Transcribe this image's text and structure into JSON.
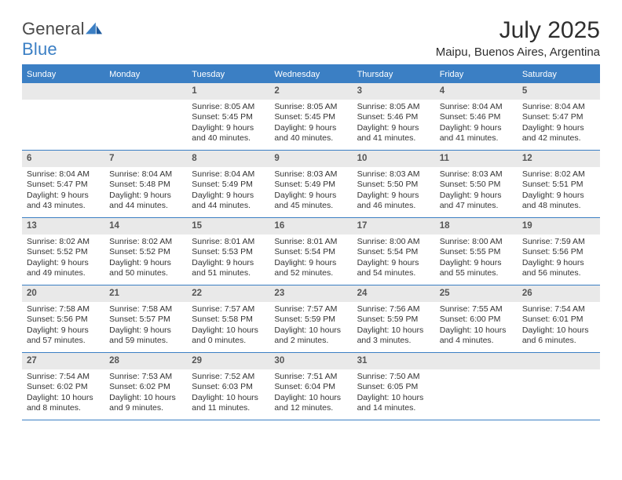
{
  "logo": {
    "word1": "General",
    "word2": "Blue"
  },
  "title": "July 2025",
  "location": "Maipu, Buenos Aires, Argentina",
  "colors": {
    "accent": "#3b7fc4",
    "daybar_bg": "#e9e9e9",
    "text": "#333333"
  },
  "day_headers": [
    "Sunday",
    "Monday",
    "Tuesday",
    "Wednesday",
    "Thursday",
    "Friday",
    "Saturday"
  ],
  "weeks": [
    [
      {
        "num": "",
        "lines": []
      },
      {
        "num": "",
        "lines": []
      },
      {
        "num": "1",
        "lines": [
          "Sunrise: 8:05 AM",
          "Sunset: 5:45 PM",
          "Daylight: 9 hours",
          "and 40 minutes."
        ]
      },
      {
        "num": "2",
        "lines": [
          "Sunrise: 8:05 AM",
          "Sunset: 5:45 PM",
          "Daylight: 9 hours",
          "and 40 minutes."
        ]
      },
      {
        "num": "3",
        "lines": [
          "Sunrise: 8:05 AM",
          "Sunset: 5:46 PM",
          "Daylight: 9 hours",
          "and 41 minutes."
        ]
      },
      {
        "num": "4",
        "lines": [
          "Sunrise: 8:04 AM",
          "Sunset: 5:46 PM",
          "Daylight: 9 hours",
          "and 41 minutes."
        ]
      },
      {
        "num": "5",
        "lines": [
          "Sunrise: 8:04 AM",
          "Sunset: 5:47 PM",
          "Daylight: 9 hours",
          "and 42 minutes."
        ]
      }
    ],
    [
      {
        "num": "6",
        "lines": [
          "Sunrise: 8:04 AM",
          "Sunset: 5:47 PM",
          "Daylight: 9 hours",
          "and 43 minutes."
        ]
      },
      {
        "num": "7",
        "lines": [
          "Sunrise: 8:04 AM",
          "Sunset: 5:48 PM",
          "Daylight: 9 hours",
          "and 44 minutes."
        ]
      },
      {
        "num": "8",
        "lines": [
          "Sunrise: 8:04 AM",
          "Sunset: 5:49 PM",
          "Daylight: 9 hours",
          "and 44 minutes."
        ]
      },
      {
        "num": "9",
        "lines": [
          "Sunrise: 8:03 AM",
          "Sunset: 5:49 PM",
          "Daylight: 9 hours",
          "and 45 minutes."
        ]
      },
      {
        "num": "10",
        "lines": [
          "Sunrise: 8:03 AM",
          "Sunset: 5:50 PM",
          "Daylight: 9 hours",
          "and 46 minutes."
        ]
      },
      {
        "num": "11",
        "lines": [
          "Sunrise: 8:03 AM",
          "Sunset: 5:50 PM",
          "Daylight: 9 hours",
          "and 47 minutes."
        ]
      },
      {
        "num": "12",
        "lines": [
          "Sunrise: 8:02 AM",
          "Sunset: 5:51 PM",
          "Daylight: 9 hours",
          "and 48 minutes."
        ]
      }
    ],
    [
      {
        "num": "13",
        "lines": [
          "Sunrise: 8:02 AM",
          "Sunset: 5:52 PM",
          "Daylight: 9 hours",
          "and 49 minutes."
        ]
      },
      {
        "num": "14",
        "lines": [
          "Sunrise: 8:02 AM",
          "Sunset: 5:52 PM",
          "Daylight: 9 hours",
          "and 50 minutes."
        ]
      },
      {
        "num": "15",
        "lines": [
          "Sunrise: 8:01 AM",
          "Sunset: 5:53 PM",
          "Daylight: 9 hours",
          "and 51 minutes."
        ]
      },
      {
        "num": "16",
        "lines": [
          "Sunrise: 8:01 AM",
          "Sunset: 5:54 PM",
          "Daylight: 9 hours",
          "and 52 minutes."
        ]
      },
      {
        "num": "17",
        "lines": [
          "Sunrise: 8:00 AM",
          "Sunset: 5:54 PM",
          "Daylight: 9 hours",
          "and 54 minutes."
        ]
      },
      {
        "num": "18",
        "lines": [
          "Sunrise: 8:00 AM",
          "Sunset: 5:55 PM",
          "Daylight: 9 hours",
          "and 55 minutes."
        ]
      },
      {
        "num": "19",
        "lines": [
          "Sunrise: 7:59 AM",
          "Sunset: 5:56 PM",
          "Daylight: 9 hours",
          "and 56 minutes."
        ]
      }
    ],
    [
      {
        "num": "20",
        "lines": [
          "Sunrise: 7:58 AM",
          "Sunset: 5:56 PM",
          "Daylight: 9 hours",
          "and 57 minutes."
        ]
      },
      {
        "num": "21",
        "lines": [
          "Sunrise: 7:58 AM",
          "Sunset: 5:57 PM",
          "Daylight: 9 hours",
          "and 59 minutes."
        ]
      },
      {
        "num": "22",
        "lines": [
          "Sunrise: 7:57 AM",
          "Sunset: 5:58 PM",
          "Daylight: 10 hours",
          "and 0 minutes."
        ]
      },
      {
        "num": "23",
        "lines": [
          "Sunrise: 7:57 AM",
          "Sunset: 5:59 PM",
          "Daylight: 10 hours",
          "and 2 minutes."
        ]
      },
      {
        "num": "24",
        "lines": [
          "Sunrise: 7:56 AM",
          "Sunset: 5:59 PM",
          "Daylight: 10 hours",
          "and 3 minutes."
        ]
      },
      {
        "num": "25",
        "lines": [
          "Sunrise: 7:55 AM",
          "Sunset: 6:00 PM",
          "Daylight: 10 hours",
          "and 4 minutes."
        ]
      },
      {
        "num": "26",
        "lines": [
          "Sunrise: 7:54 AM",
          "Sunset: 6:01 PM",
          "Daylight: 10 hours",
          "and 6 minutes."
        ]
      }
    ],
    [
      {
        "num": "27",
        "lines": [
          "Sunrise: 7:54 AM",
          "Sunset: 6:02 PM",
          "Daylight: 10 hours",
          "and 8 minutes."
        ]
      },
      {
        "num": "28",
        "lines": [
          "Sunrise: 7:53 AM",
          "Sunset: 6:02 PM",
          "Daylight: 10 hours",
          "and 9 minutes."
        ]
      },
      {
        "num": "29",
        "lines": [
          "Sunrise: 7:52 AM",
          "Sunset: 6:03 PM",
          "Daylight: 10 hours",
          "and 11 minutes."
        ]
      },
      {
        "num": "30",
        "lines": [
          "Sunrise: 7:51 AM",
          "Sunset: 6:04 PM",
          "Daylight: 10 hours",
          "and 12 minutes."
        ]
      },
      {
        "num": "31",
        "lines": [
          "Sunrise: 7:50 AM",
          "Sunset: 6:05 PM",
          "Daylight: 10 hours",
          "and 14 minutes."
        ]
      },
      {
        "num": "",
        "lines": []
      },
      {
        "num": "",
        "lines": []
      }
    ]
  ]
}
